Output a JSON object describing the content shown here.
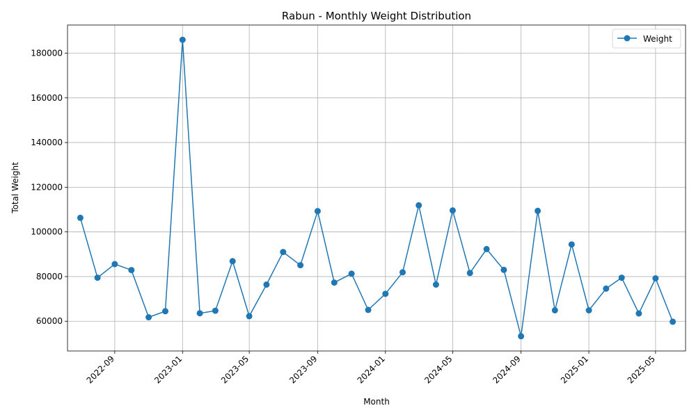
{
  "chart_data": {
    "type": "line",
    "title": "Rabun - Monthly Weight Distribution",
    "xlabel": "Month",
    "ylabel": "Total Weight",
    "x": [
      "2022-07",
      "2022-08",
      "2022-09",
      "2022-10",
      "2022-11",
      "2022-12",
      "2023-01",
      "2023-02",
      "2023-03",
      "2023-04",
      "2023-05",
      "2023-06",
      "2023-07",
      "2023-08",
      "2023-09",
      "2023-10",
      "2023-11",
      "2023-12",
      "2024-01",
      "2024-02",
      "2024-03",
      "2024-04",
      "2024-05",
      "2024-06",
      "2024-07",
      "2024-08",
      "2024-09",
      "2024-10",
      "2024-11",
      "2024-12",
      "2025-01",
      "2025-02",
      "2025-03",
      "2025-04",
      "2025-05",
      "2025-06"
    ],
    "series": [
      {
        "name": "Weight",
        "color": "#1f77b4",
        "marker": "circle",
        "values": [
          106300,
          79500,
          85600,
          82900,
          61800,
          64500,
          186000,
          63600,
          64700,
          86900,
          62300,
          76400,
          91000,
          85100,
          109300,
          77300,
          81300,
          65100,
          72300,
          81900,
          111900,
          76400,
          109600,
          81600,
          92300,
          83000,
          53300,
          109400,
          64900,
          94400,
          64900,
          74600,
          79500,
          63500,
          79200,
          59800
        ]
      }
    ],
    "xticks": [
      "2022-09",
      "2023-01",
      "2023-05",
      "2023-09",
      "2024-01",
      "2024-05",
      "2024-09",
      "2025-01",
      "2025-05"
    ],
    "yticks": [
      60000,
      80000,
      100000,
      120000,
      140000,
      160000,
      180000
    ],
    "xlim": [
      "2022-06-08",
      "2025-06-24"
    ],
    "ylim": [
      46700,
      192600
    ],
    "grid": true,
    "legend": "top-right"
  }
}
